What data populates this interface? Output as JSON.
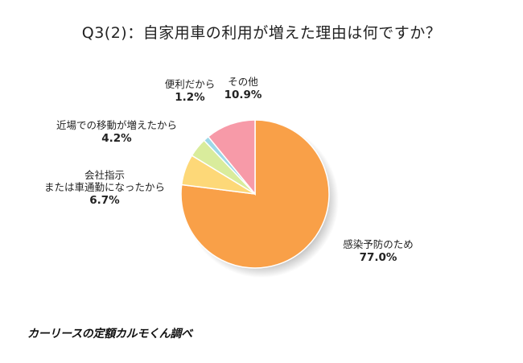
{
  "title": "Q3(2)：自家用車の利用が増えた理由は何ですか？",
  "credit": "カーリースの定額カルモくん調べ",
  "chart_data": {
    "type": "pie",
    "title": "Q3(2)：自家用車の利用が増えた理由は何ですか？",
    "slices": [
      {
        "label": "感染予防のため",
        "value": 77.0,
        "value_label": "77.0%",
        "color": "#f9a048"
      },
      {
        "label": "会社指示\nまたは車通勤になったから",
        "value": 6.7,
        "value_label": "6.7%",
        "color": "#fdd878"
      },
      {
        "label": "近場での移動が増えたから",
        "value": 4.2,
        "value_label": "4.2%",
        "color": "#d9ec9c"
      },
      {
        "label": "便利だから",
        "value": 1.2,
        "value_label": "1.2%",
        "color": "#9dd8e8"
      },
      {
        "label": "その他",
        "value": 10.9,
        "value_label": "10.9%",
        "color": "#f79aa8"
      }
    ]
  }
}
